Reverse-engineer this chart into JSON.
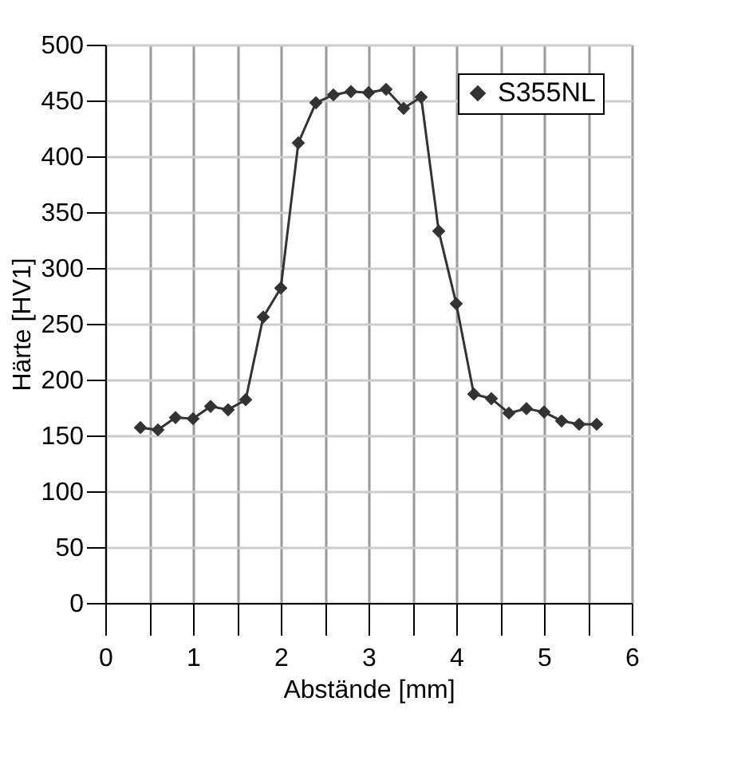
{
  "chart_data": {
    "type": "line",
    "xlabel": "Abstände [mm]",
    "ylabel": "Härte [HV1]",
    "x": [
      0.4,
      0.6,
      0.8,
      1.0,
      1.2,
      1.4,
      1.6,
      1.8,
      2.0,
      2.2,
      2.4,
      2.6,
      2.8,
      3.0,
      3.2,
      3.4,
      3.6,
      3.8,
      4.0,
      4.2,
      4.4,
      4.6,
      4.8,
      5.0,
      5.2,
      5.4,
      5.6
    ],
    "series": [
      {
        "name": "S355NL",
        "color": "#333333",
        "values": [
          157,
          155,
          166,
          165,
          176,
          173,
          182,
          256,
          282,
          412,
          448,
          455,
          458,
          457,
          460,
          443,
          453,
          333,
          268,
          187,
          183,
          170,
          174,
          171,
          163,
          160,
          160
        ]
      }
    ],
    "xlim": [
      0,
      6
    ],
    "ylim": [
      0,
      500
    ],
    "xticks": [
      0,
      {
        "value": 0.5,
        "label": null
      },
      1,
      {
        "value": 1.5,
        "label": null
      },
      2,
      {
        "value": 2.5,
        "label": null
      },
      3,
      {
        "value": 3.5,
        "label": null
      },
      4,
      {
        "value": 4.5,
        "label": null
      },
      5,
      {
        "value": 5.5,
        "label": null
      },
      6
    ],
    "yticks": [
      0,
      50,
      100,
      150,
      200,
      250,
      300,
      350,
      400,
      450,
      500
    ],
    "grid": true,
    "legend": "top right",
    "marker": "diamond",
    "line_style": "solid"
  }
}
